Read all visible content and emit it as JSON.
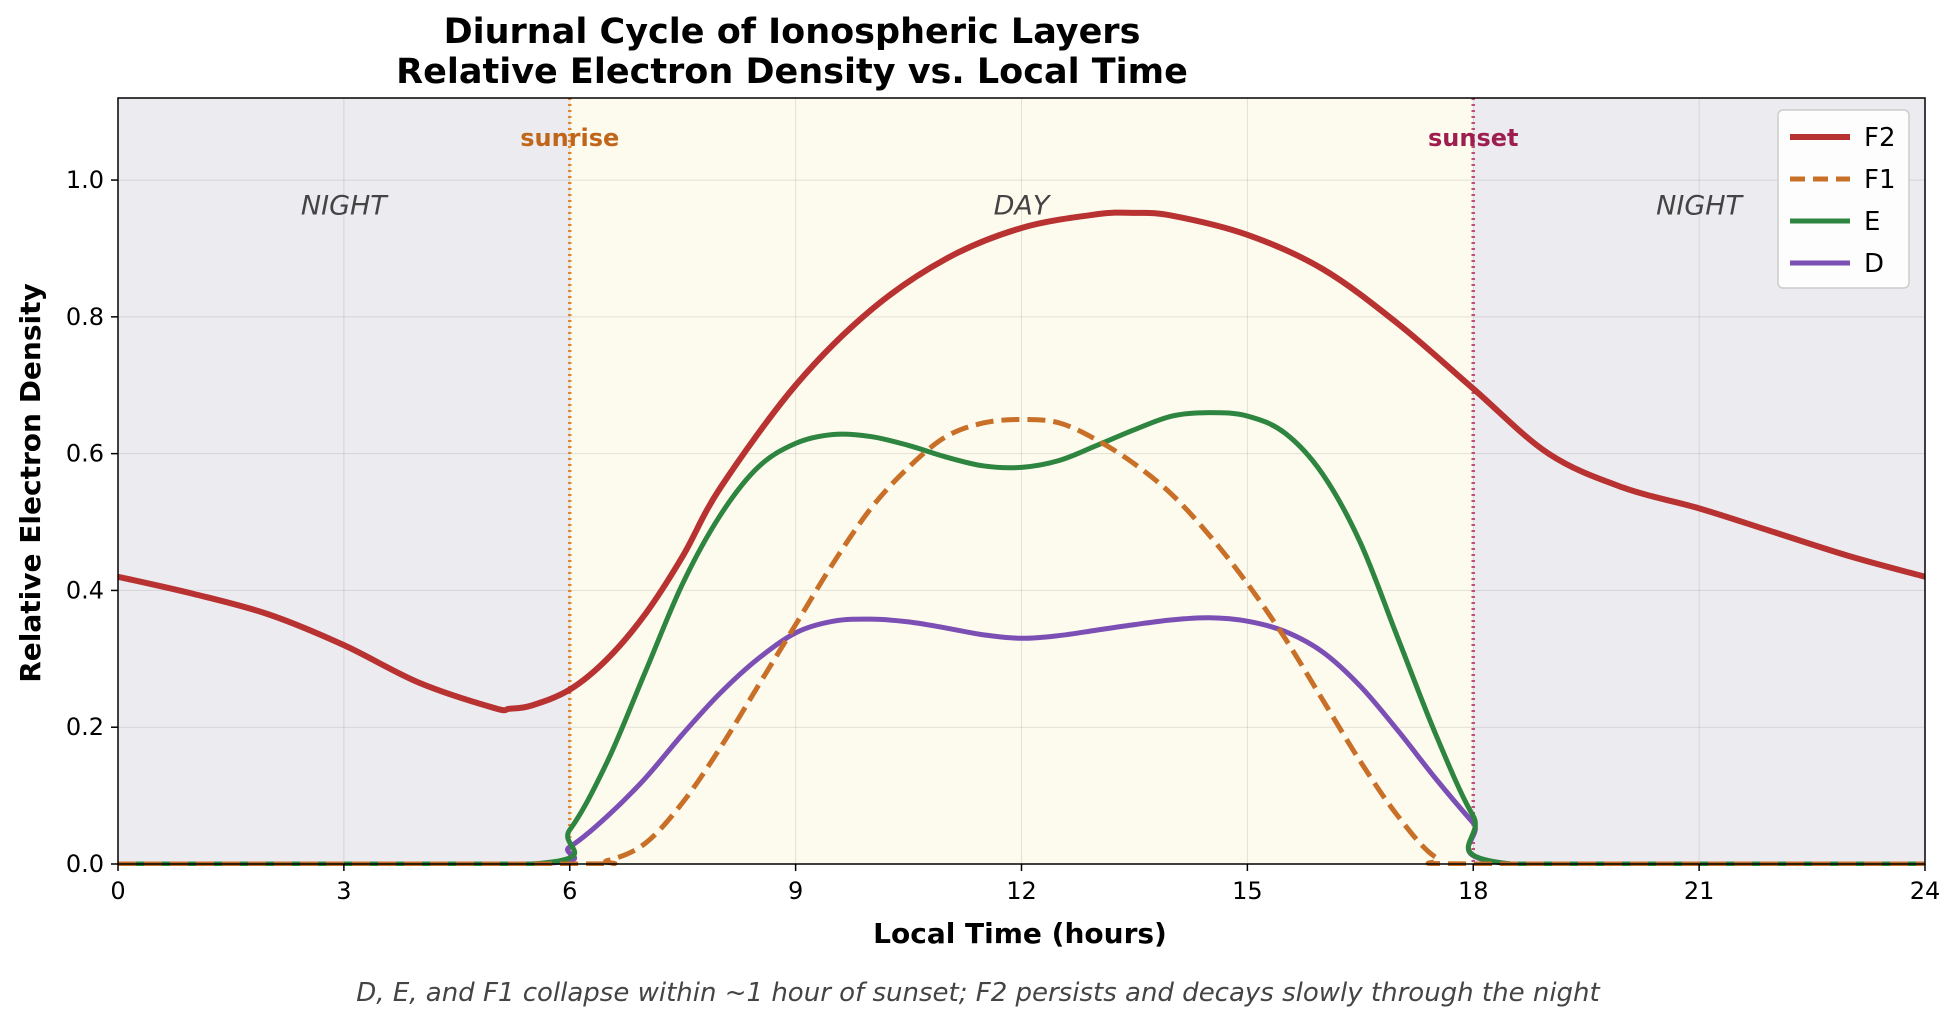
{
  "chart_data": {
    "type": "line",
    "title": "Diurnal Cycle of Ionospheric Layers",
    "subtitle": "Relative Electron Density vs. Local Time",
    "xlabel": "Local Time (hours)",
    "ylabel": "Relative Electron Density",
    "xlim": [
      0,
      24
    ],
    "ylim": [
      0,
      1.12
    ],
    "xticks": [
      0,
      3,
      6,
      9,
      12,
      15,
      18,
      21,
      24
    ],
    "yticks": [
      "0.0",
      "0.2",
      "0.4",
      "0.6",
      "0.8",
      "1.0"
    ],
    "grid": true,
    "legend_position": "top-right",
    "regions": [
      {
        "label": "NIGHT",
        "start": 0,
        "end": 6,
        "label_x": 3,
        "color": "#ececf0"
      },
      {
        "label": "DAY",
        "start": 6,
        "end": 18,
        "label_x": 12,
        "color": "#fdfaee"
      },
      {
        "label": "NIGHT",
        "start": 18,
        "end": 24,
        "label_x": 21,
        "color": "#ececf0"
      }
    ],
    "events": [
      {
        "label": "sunrise",
        "x": 6,
        "color": "#e0892a",
        "text_color": "#c0661a"
      },
      {
        "label": "sunset",
        "x": 18,
        "color": "#c0507a",
        "text_color": "#9e1f4f"
      }
    ],
    "series": [
      {
        "name": "F2",
        "color": "#b83232",
        "dash": "solid",
        "x": [
          0,
          1,
          2,
          3,
          4,
          5,
          5.2,
          5.5,
          6,
          6.5,
          7,
          7.5,
          8,
          9,
          10,
          11,
          12,
          13,
          13.5,
          14,
          15,
          16,
          17,
          18,
          19,
          20,
          21,
          22,
          23,
          24
        ],
        "y": [
          0.42,
          0.395,
          0.365,
          0.32,
          0.265,
          0.228,
          0.227,
          0.232,
          0.255,
          0.3,
          0.365,
          0.45,
          0.55,
          0.7,
          0.81,
          0.885,
          0.93,
          0.95,
          0.952,
          0.948,
          0.92,
          0.87,
          0.79,
          0.695,
          0.6,
          0.55,
          0.52,
          0.485,
          0.45,
          0.42
        ]
      },
      {
        "name": "F1",
        "color": "#c87028",
        "dash": "dashed",
        "x": [
          0,
          6,
          6.5,
          7,
          7.5,
          8,
          8.5,
          9,
          9.5,
          10,
          10.5,
          11,
          11.5,
          12,
          12.5,
          13,
          13.5,
          14,
          14.5,
          15,
          15.5,
          16,
          16.5,
          17,
          17.5,
          18,
          24
        ],
        "y": [
          0,
          0,
          0.005,
          0.03,
          0.09,
          0.17,
          0.26,
          0.35,
          0.44,
          0.52,
          0.58,
          0.625,
          0.645,
          0.65,
          0.645,
          0.62,
          0.585,
          0.54,
          0.48,
          0.41,
          0.33,
          0.24,
          0.15,
          0.07,
          0.01,
          0,
          0
        ]
      },
      {
        "name": "E",
        "color": "#2e8540",
        "dash": "solid",
        "x": [
          0,
          5.5,
          6,
          6.5,
          7,
          7.5,
          8,
          8.5,
          9,
          9.5,
          10,
          10.5,
          11,
          11.5,
          12,
          12.5,
          13,
          13.5,
          14,
          14.5,
          15,
          15.5,
          16,
          16.5,
          17,
          17.5,
          18,
          18.5,
          24
        ],
        "y": [
          0,
          0,
          0.05,
          0.15,
          0.28,
          0.41,
          0.51,
          0.58,
          0.615,
          0.628,
          0.625,
          0.612,
          0.595,
          0.582,
          0.58,
          0.59,
          0.612,
          0.635,
          0.655,
          0.66,
          0.655,
          0.63,
          0.57,
          0.47,
          0.33,
          0.19,
          0.07,
          0,
          0
        ]
      },
      {
        "name": "D",
        "color": "#7c4fb5",
        "dash": "solid",
        "x": [
          0,
          5.5,
          6,
          6.5,
          7,
          7.5,
          8,
          8.5,
          9,
          9.5,
          10,
          10.5,
          11,
          11.5,
          12,
          12.5,
          13,
          13.5,
          14,
          14.5,
          15,
          15.5,
          16,
          16.5,
          17,
          17.5,
          18,
          18.5,
          24
        ],
        "y": [
          0,
          0,
          0.025,
          0.07,
          0.125,
          0.19,
          0.25,
          0.3,
          0.338,
          0.355,
          0.358,
          0.354,
          0.345,
          0.335,
          0.33,
          0.334,
          0.342,
          0.35,
          0.357,
          0.36,
          0.355,
          0.34,
          0.31,
          0.26,
          0.195,
          0.125,
          0.06,
          0,
          0
        ]
      }
    ],
    "annotation": "D, E, and F1 collapse within ~1 hour of sunset; F2 persists and decays slowly through the night"
  }
}
